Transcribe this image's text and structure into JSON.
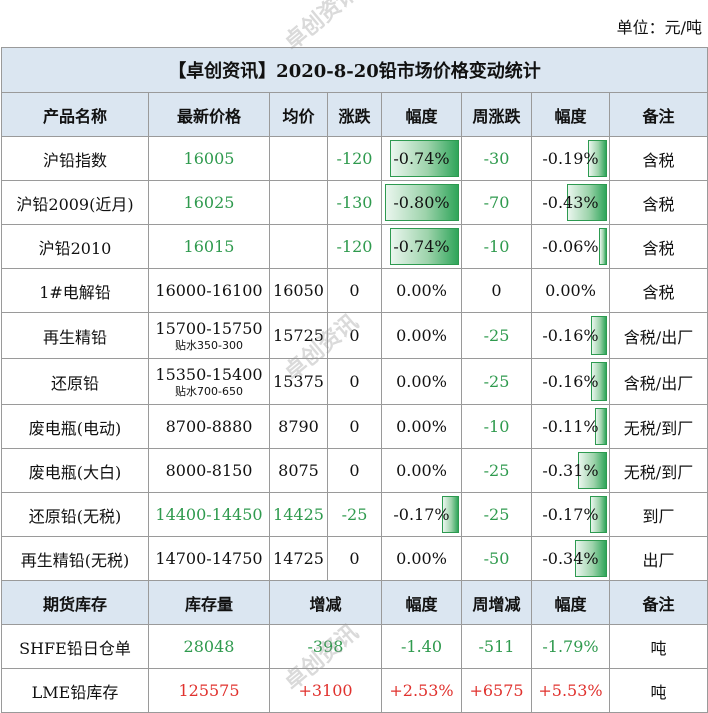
{
  "unit_label": "单位：元/吨",
  "title": "【卓创资讯】2020-8-20铅市场价格变动统计",
  "price_header": [
    "产品名称",
    "最新价格",
    "均价",
    "涨跌",
    "幅度",
    "周涨跌",
    "幅度",
    "备注"
  ],
  "price_rows": [
    {
      "name": "沪铅指数",
      "price": "16005",
      "price_note": "",
      "avg": "",
      "change": "-120",
      "pct": "-0.74%",
      "pct_level": 0.74,
      "week": "-30",
      "wpct": "-0.19%",
      "wpct_level": 0.19,
      "note": "含税"
    },
    {
      "name": "沪铅2009(近月)",
      "price": "16025",
      "price_note": "",
      "avg": "",
      "change": "-130",
      "pct": "-0.80%",
      "pct_level": 0.8,
      "week": "-70",
      "wpct": "-0.43%",
      "wpct_level": 0.43,
      "note": "含税"
    },
    {
      "name": "沪铅2010",
      "price": "16015",
      "price_note": "",
      "avg": "",
      "change": "-120",
      "pct": "-0.74%",
      "pct_level": 0.74,
      "week": "-10",
      "wpct": "-0.06%",
      "wpct_level": 0.06,
      "note": "含税"
    },
    {
      "name": "1#电解铅",
      "price": "16000-16100",
      "price_note": "",
      "avg": "16050",
      "change": "0",
      "pct": "0.00%",
      "pct_level": 0,
      "week": "0",
      "wpct": "0.00%",
      "wpct_level": 0,
      "note": "含税"
    },
    {
      "name": "再生精铅",
      "price": "15700-15750",
      "price_note": "贴水350-300",
      "avg": "15725",
      "change": "0",
      "pct": "0.00%",
      "pct_level": 0,
      "week": "-25",
      "wpct": "-0.16%",
      "wpct_level": 0.16,
      "note": "含税/出厂"
    },
    {
      "name": "还原铅",
      "price": "15350-15400",
      "price_note": "贴水700-650",
      "avg": "15375",
      "change": "0",
      "pct": "0.00%",
      "pct_level": 0,
      "week": "-25",
      "wpct": "-0.16%",
      "wpct_level": 0.16,
      "note": "含税/出厂"
    },
    {
      "name": "废电瓶(电动)",
      "price": "8700-8880",
      "price_note": "",
      "avg": "8790",
      "change": "0",
      "pct": "0.00%",
      "pct_level": 0,
      "week": "-10",
      "wpct": "-0.11%",
      "wpct_level": 0.11,
      "note": "无税/到厂"
    },
    {
      "name": "废电瓶(大白)",
      "price": "8000-8150",
      "price_note": "",
      "avg": "8075",
      "change": "0",
      "pct": "0.00%",
      "pct_level": 0,
      "week": "-25",
      "wpct": "-0.31%",
      "wpct_level": 0.31,
      "note": "无税/到厂"
    },
    {
      "name": "还原铅(无税)",
      "price": "14400-14450",
      "price_note": "",
      "avg": "14425",
      "change": "-25",
      "pct": "-0.17%",
      "pct_level": 0.17,
      "week": "-25",
      "wpct": "-0.17%",
      "wpct_level": 0.17,
      "note": "到厂"
    },
    {
      "name": "再生精铅(无税)",
      "price": "14700-14750",
      "price_note": "",
      "avg": "14725",
      "change": "0",
      "pct": "0.00%",
      "pct_level": 0,
      "week": "-50",
      "wpct": "-0.34%",
      "wpct_level": 0.34,
      "note": "出厂"
    }
  ],
  "inv_header": [
    "期货库存",
    "库存量",
    "增减",
    "幅度",
    "周增减",
    "幅度",
    "备注"
  ],
  "inv_rows": [
    {
      "name": "SHFE铅日仓单",
      "qty": "28048",
      "change": "-398",
      "pct": "-1.40",
      "week": "-511",
      "wpct": "-1.79%",
      "note": "吨",
      "color": "g"
    },
    {
      "name": "LME铅库存",
      "qty": "125575",
      "change": "+3100",
      "pct": "+2.53%",
      "week": "+6575",
      "wpct": "+5.53%",
      "note": "吨",
      "color": "r"
    }
  ],
  "colors": {
    "header_bg": "#dbe6f1",
    "down_green": "#2f9a4e",
    "up_red": "#e0322e",
    "bar_green": "#2fa55a"
  }
}
